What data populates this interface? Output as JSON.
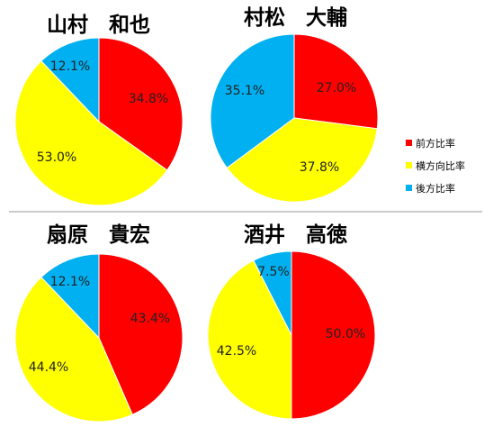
{
  "legend": {
    "items": [
      {
        "label": "前方比率",
        "color": "#ff0000"
      },
      {
        "label": "横方向比率",
        "color": "#ffff00"
      },
      {
        "label": "後方比率",
        "color": "#00b0f0"
      }
    ]
  },
  "chart_data": [
    {
      "type": "pie",
      "title": "山村　和也",
      "categories": [
        "前方比率",
        "横方向比率",
        "後方比率"
      ],
      "values": [
        34.8,
        53.0,
        12.1
      ],
      "labels": [
        "34.8%",
        "53.0%",
        "12.1%"
      ]
    },
    {
      "type": "pie",
      "title": "村松　大輔",
      "categories": [
        "前方比率",
        "横方向比率",
        "後方比率"
      ],
      "values": [
        27.0,
        37.8,
        35.1
      ],
      "labels": [
        "27.0%",
        "37.8%",
        "35.1%"
      ]
    },
    {
      "type": "pie",
      "title": "扇原　貴宏",
      "categories": [
        "前方比率",
        "横方向比率",
        "後方比率"
      ],
      "values": [
        43.4,
        44.4,
        12.1
      ],
      "labels": [
        "43.4%",
        "44.4%",
        "12.1%"
      ]
    },
    {
      "type": "pie",
      "title": "酒井　高徳",
      "categories": [
        "前方比率",
        "横方向比率",
        "後方比率"
      ],
      "values": [
        50.0,
        42.5,
        7.5
      ],
      "labels": [
        "50.0%",
        "42.5%",
        "7.5%"
      ]
    }
  ]
}
